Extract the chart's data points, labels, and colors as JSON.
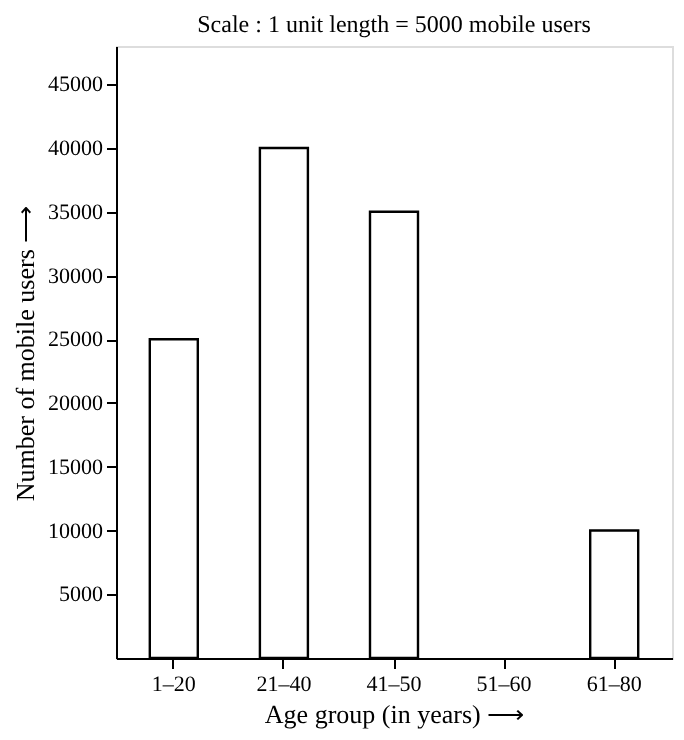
{
  "chart_data": {
    "type": "bar",
    "title": "Scale : 1 unit length = 5000 mobile users",
    "xlabel": "Age group (in years) ⟶",
    "ylabel": "Number of mobile users ⟶",
    "categories": [
      "1–20",
      "21–40",
      "41–50",
      "51–60",
      "61–80"
    ],
    "values": [
      25000,
      40000,
      35000,
      0,
      10000
    ],
    "color": "#ffffff",
    "ylim": [
      0,
      48000
    ],
    "yticks": [
      5000,
      10000,
      15000,
      20000,
      25000,
      30000,
      35000,
      40000,
      45000
    ],
    "grid": false
  }
}
